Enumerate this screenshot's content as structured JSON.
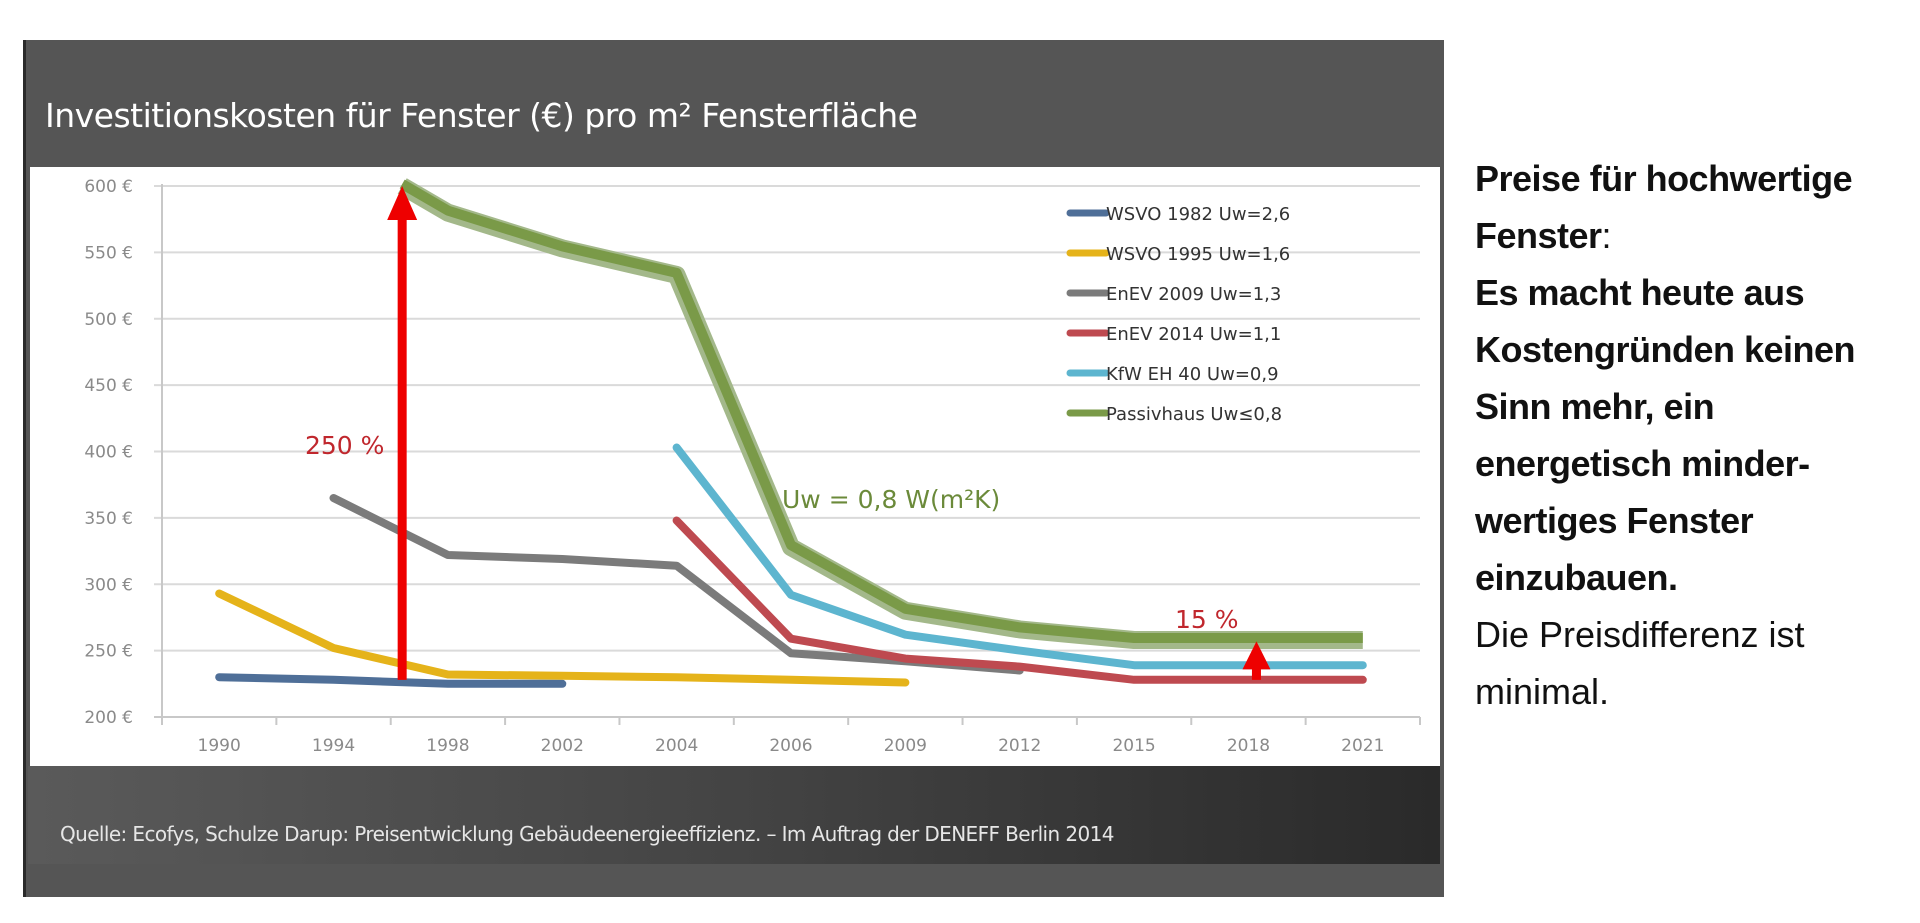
{
  "title": "Investitionskosten für Fenster (€) pro m² Fensterfläche",
  "source": "Quelle: Ecofys, Schulze Darup: Preisentwicklung Gebäudeenergieeffizienz. – Im Auftrag der DENEFF Berlin 2014",
  "side_text": {
    "l1": "Preise für hochwertige",
    "l2": "Fenster",
    "l2_colon": ":",
    "l3": "Es macht heute aus",
    "l4": "Kostengründen keinen",
    "l5": "Sinn mehr, ein",
    "l6": "energetisch minder-",
    "l7": "wertiges Fenster",
    "l8": "einzubauen.",
    "l9": "Die Preisdifferenz ist",
    "l10": "minimal."
  },
  "chart_data": {
    "type": "line",
    "title": "Investitionskosten für Fenster (€) pro m² Fensterfläche",
    "xlabel": "",
    "ylabel": "",
    "categories": [
      "1990",
      "1994",
      "1998",
      "2002",
      "2004",
      "2006",
      "2009",
      "2012",
      "2015",
      "2018",
      "2021"
    ],
    "yticks": [
      "200 €",
      "250 €",
      "300 €",
      "350 €",
      "400 €",
      "450 €",
      "500 €",
      "550 €",
      "600 €"
    ],
    "ylim": [
      200,
      600
    ],
    "grid": true,
    "legend": "top-right",
    "series": [
      {
        "name": "WSVO 1982 Uw=2,6",
        "color": "#4f6f98",
        "values": [
          230,
          228,
          225,
          225,
          null,
          null,
          null,
          null,
          null,
          null,
          null
        ]
      },
      {
        "name": "WSVO 1995 Uw=1,6",
        "color": "#e5b31a",
        "values": [
          293,
          252,
          232,
          231,
          230,
          228,
          226,
          null,
          null,
          null,
          null
        ]
      },
      {
        "name": "EnEV 2009 Uw=1,3",
        "color": "#7b7b7b",
        "values": [
          null,
          365,
          322,
          319,
          314,
          248,
          242,
          235,
          null,
          null,
          null
        ]
      },
      {
        "name": "EnEV 2014 Uw=1,1",
        "color": "#be4a50",
        "values": [
          null,
          null,
          null,
          null,
          348,
          259,
          244,
          238,
          228,
          228,
          228
        ]
      },
      {
        "name": "KfW EH 40 Uw=0,9",
        "color": "#5db5cf",
        "values": [
          null,
          null,
          null,
          null,
          403,
          292,
          262,
          250,
          239,
          239,
          239
        ]
      },
      {
        "name": "Passivhaus Uw≤0,8",
        "color": "#7a9a48",
        "start_index": 1.6,
        "start_value": 600,
        "values": [
          null,
          null,
          580,
          553,
          533,
          328,
          280,
          266,
          258,
          258,
          258
        ]
      }
    ],
    "annotations": [
      {
        "text": "250 %",
        "color": "#c0272d",
        "arrow_from": 228,
        "arrow_to": 600,
        "at_index": 1.6
      },
      {
        "text": "15 %",
        "color": "#c0272d",
        "arrow_from": 228,
        "arrow_to": 258,
        "at_index": 9
      },
      {
        "text": "Uw = 0,8 W(m²K)",
        "color": "#6b8a3a"
      }
    ]
  }
}
